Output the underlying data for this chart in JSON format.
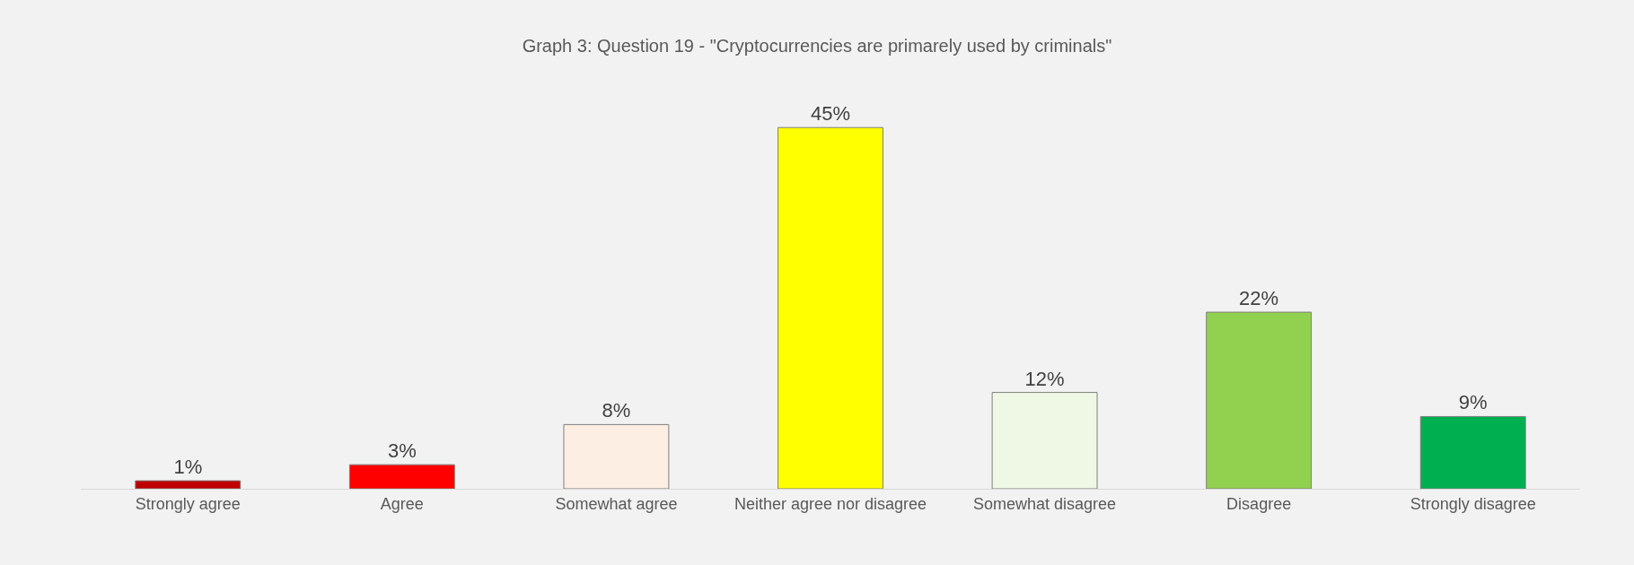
{
  "chart_data": {
    "type": "bar",
    "title": "Graph 3: Question 19 - \"Cryptocurrencies are primarely used by criminals\"",
    "categories": [
      "Strongly agree",
      "Agree",
      "Somewhat agree",
      "Neither agree nor disagree",
      "Somewhat disagree",
      "Disagree",
      "Strongly disagree"
    ],
    "values": [
      1,
      3,
      8,
      45,
      12,
      22,
      9
    ],
    "value_labels": [
      "1%",
      "3%",
      "8%",
      "45%",
      "12%",
      "22%",
      "9%"
    ],
    "colors": [
      "#c00000",
      "#ff0000",
      "#fdeee3",
      "#ffff00",
      "#eef8e4",
      "#92d050",
      "#00b050"
    ],
    "grid": false,
    "legend": false
  }
}
